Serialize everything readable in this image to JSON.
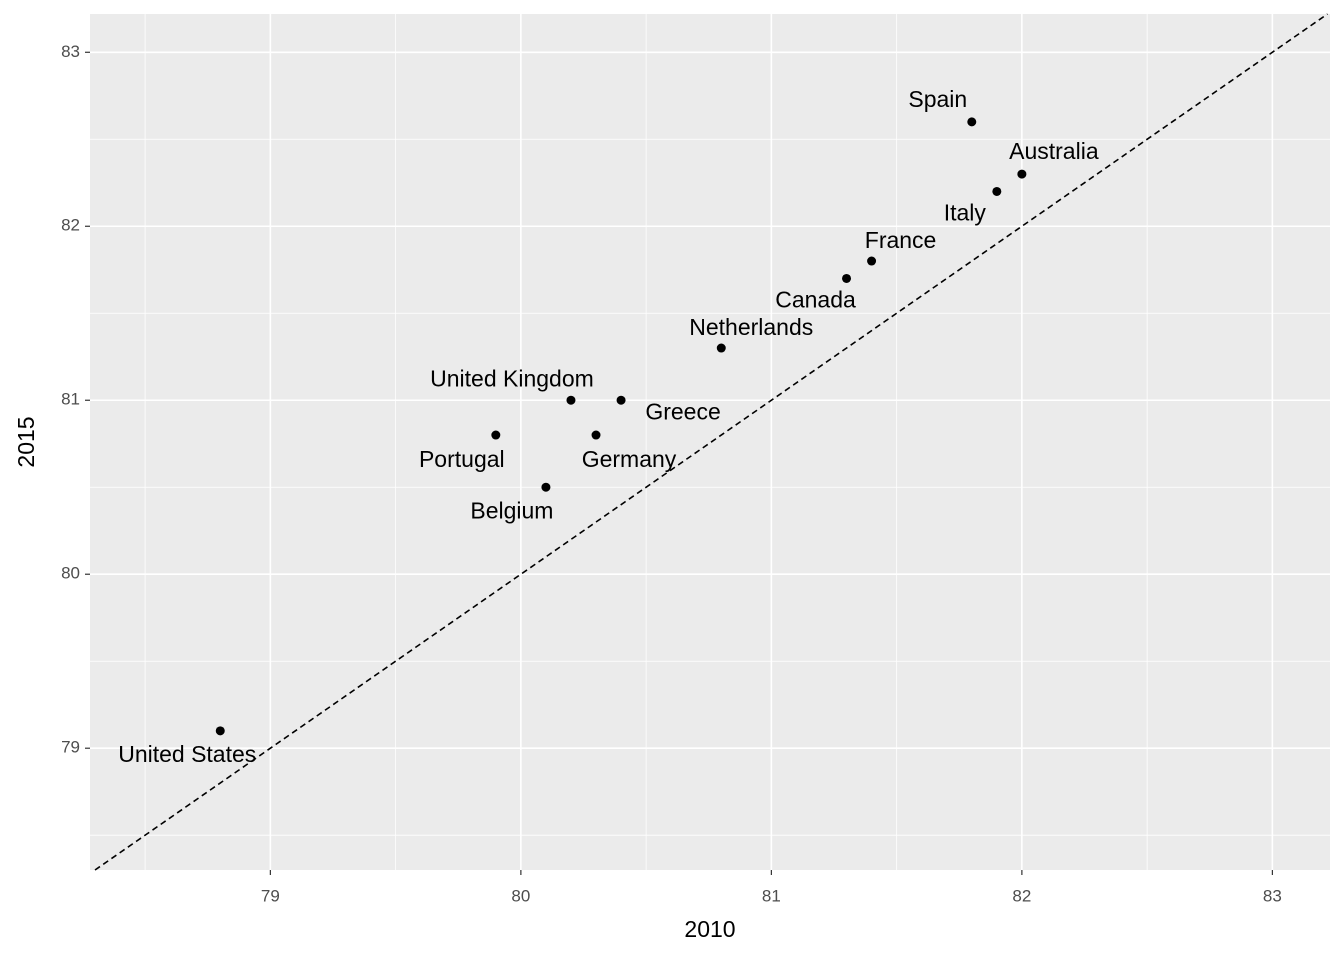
{
  "chart_data": {
    "type": "scatter",
    "x_label": "2010",
    "y_label": "2015",
    "labels": [
      "United States",
      "Portugal",
      "Belgium",
      "United Kingdom",
      "Germany",
      "Greece",
      "Netherlands",
      "Canada",
      "France",
      "Italy",
      "Australia",
      "Spain"
    ],
    "x": [
      78.8,
      79.9,
      80.1,
      80.2,
      80.3,
      80.4,
      80.8,
      81.3,
      81.4,
      81.9,
      82.0,
      81.8
    ],
    "y": [
      79.1,
      80.8,
      80.5,
      81.0,
      80.8,
      81.0,
      81.3,
      81.7,
      81.8,
      82.2,
      82.3,
      82.6
    ],
    "color": "#000000",
    "xlim": [
      78.28,
      83.23
    ],
    "ylim": [
      78.3,
      83.22
    ],
    "xticks": [
      79,
      80,
      81,
      82,
      83
    ],
    "yticks": [
      79,
      80,
      81,
      82,
      83
    ],
    "grid": true,
    "identity_line": true
  }
}
